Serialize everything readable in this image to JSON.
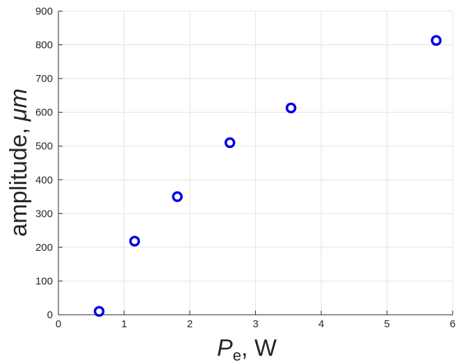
{
  "chart_data": {
    "type": "scatter",
    "xlim": [
      0,
      6
    ],
    "ylim": [
      0,
      900
    ],
    "xticks": [
      0,
      1,
      2,
      3,
      4,
      5,
      6
    ],
    "yticks": [
      0,
      100,
      200,
      300,
      400,
      500,
      600,
      700,
      800,
      900
    ],
    "xlabel": {
      "symbol": "P",
      "subscript": "e",
      "unit": ", W"
    },
    "ylabel": {
      "text": "amplitude, ",
      "unit": "μm"
    },
    "grid": true,
    "marker": "circle-open",
    "color": "#0000e6",
    "points": [
      {
        "x": 0.62,
        "y": 10
      },
      {
        "x": 1.16,
        "y": 218
      },
      {
        "x": 1.81,
        "y": 350
      },
      {
        "x": 2.61,
        "y": 510
      },
      {
        "x": 3.54,
        "y": 613
      },
      {
        "x": 5.75,
        "y": 813
      }
    ]
  }
}
